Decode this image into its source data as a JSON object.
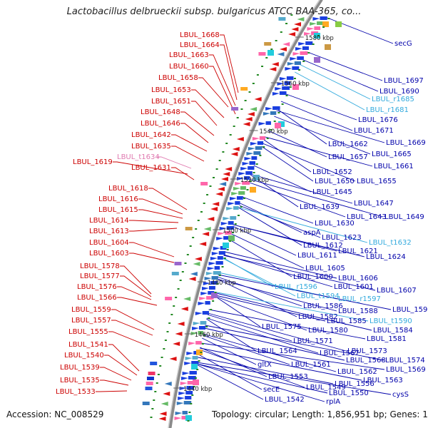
{
  "header": {
    "title": "Lactobacillus delbrueckii subsp. bulgaricus ATCC BAA-365, co..."
  },
  "footer": {
    "accession": "Accession: NC_008529",
    "topology": "Topology: circular; Length: 1,856,951 bp; Genes: 1,841"
  },
  "colors": {
    "left_label": "#cc0000",
    "left_label_light": "#e07ab0",
    "right_label": "#0000aa",
    "right_label_light": "#33aadd",
    "backbone": "#8a8a8a",
    "tick_mark": "#228822"
  },
  "scale_labels": [
    "1580 kbp",
    "1560 kbp",
    "1540 kbp",
    "1520 kbp",
    "1500 kbp",
    "1480 kbp",
    "1460 kbp",
    "1440 kbp"
  ],
  "left_labels": [
    {
      "text": "LBUL_1668",
      "light": false
    },
    {
      "text": "LBUL_1664",
      "light": false
    },
    {
      "text": "LBUL_1663",
      "light": false
    },
    {
      "text": "LBUL_1660",
      "light": false
    },
    {
      "text": "LBUL_1658",
      "light": false
    },
    {
      "text": "LBUL_1653",
      "light": false
    },
    {
      "text": "LBUL_1651",
      "light": false
    },
    {
      "text": "LBUL_1648",
      "light": false
    },
    {
      "text": "LBUL_1646",
      "light": false
    },
    {
      "text": "LBUL_1642",
      "light": false
    },
    {
      "text": "LBUL_1635",
      "light": false
    },
    {
      "text": "LBUL_t1634",
      "light": true
    },
    {
      "text": "LBUL_1619",
      "light": false
    },
    {
      "text": "LBUL_1631",
      "light": false
    },
    {
      "text": "LBUL_1618",
      "light": false
    },
    {
      "text": "LBUL_1616",
      "light": false
    },
    {
      "text": "LBUL_1615",
      "light": false
    },
    {
      "text": "LBUL_1614",
      "light": false
    },
    {
      "text": "LBUL_1613",
      "light": false
    },
    {
      "text": "LBUL_1604",
      "light": false
    },
    {
      "text": "LBUL_1603",
      "light": false
    },
    {
      "text": "LBUL_1578",
      "light": false
    },
    {
      "text": "LBUL_1577",
      "light": false
    },
    {
      "text": "LBUL_1576",
      "light": false
    },
    {
      "text": "LBUL_1566",
      "light": false
    },
    {
      "text": "LBUL_1559",
      "light": false
    },
    {
      "text": "LBUL_1557",
      "light": false
    },
    {
      "text": "LBUL_1555",
      "light": false
    },
    {
      "text": "LBUL_1541",
      "light": false
    },
    {
      "text": "LBUL_1540",
      "light": false
    },
    {
      "text": "LBUL_1539",
      "light": false
    },
    {
      "text": "LBUL_1535",
      "light": false
    },
    {
      "text": "LBUL_1533",
      "light": false
    }
  ],
  "right_labels": [
    {
      "text": "secG",
      "light": false
    },
    {
      "text": "LBUL_1697",
      "light": false
    },
    {
      "text": "LBUL_1690",
      "light": false
    },
    {
      "text": "LBUL_r1685",
      "light": true
    },
    {
      "text": "LBUL_r1681",
      "light": true
    },
    {
      "text": "LBUL_1676",
      "light": false
    },
    {
      "text": "LBUL_1671",
      "light": false
    },
    {
      "text": "LBUL_1669",
      "light": false
    },
    {
      "text": "LBUL_1662",
      "light": false
    },
    {
      "text": "LBUL_1665",
      "light": false
    },
    {
      "text": "LBUL_1657",
      "light": false
    },
    {
      "text": "LBUL_1661",
      "light": false
    },
    {
      "text": "LBUL_1652",
      "light": false
    },
    {
      "text": "LBUL_1650",
      "light": false
    },
    {
      "text": "LBUL_1655",
      "light": false
    },
    {
      "text": "LBUL_1645",
      "light": false
    },
    {
      "text": "LBUL_1647",
      "light": false
    },
    {
      "text": "LBUL_1639",
      "light": false
    },
    {
      "text": "LBUL_1643",
      "light": false
    },
    {
      "text": "LBUL_1649",
      "light": false
    },
    {
      "text": "LBUL_1630",
      "light": false
    },
    {
      "text": "aspA",
      "light": false
    },
    {
      "text": "LBUL_1623",
      "light": false
    },
    {
      "text": "LBUL_t1632",
      "light": true
    },
    {
      "text": "LBUL_1612",
      "light": false
    },
    {
      "text": "LBUL_1621",
      "light": false
    },
    {
      "text": "LBUL_1611",
      "light": false
    },
    {
      "text": "LBUL_1624",
      "light": false
    },
    {
      "text": "LBUL_1605",
      "light": false
    },
    {
      "text": "LBUL_1600",
      "light": false
    },
    {
      "text": "LBUL_1606",
      "light": false
    },
    {
      "text": "LBUL_r1596",
      "light": true
    },
    {
      "text": "LBUL_1601",
      "light": false
    },
    {
      "text": "LBUL_1607",
      "light": false
    },
    {
      "text": "LBUL_t1594",
      "light": true
    },
    {
      "text": "LBUL_r1597",
      "light": true
    },
    {
      "text": "LBUL_1586",
      "light": false
    },
    {
      "text": "LBUL_1588",
      "light": false
    },
    {
      "text": "LBUL_1598",
      "light": false
    },
    {
      "text": "LBUL_1582",
      "light": false
    },
    {
      "text": "LBUL_1585",
      "light": false
    },
    {
      "text": "LBUL_t1590",
      "light": true
    },
    {
      "text": "LBUL_1575",
      "light": false
    },
    {
      "text": "LBUL_1580",
      "light": false
    },
    {
      "text": "LBUL_1584",
      "light": false
    },
    {
      "text": "LBUL_1571",
      "light": false
    },
    {
      "text": "LBUL_1581",
      "light": false
    },
    {
      "text": "LBUL_1564",
      "light": false
    },
    {
      "text": "LBUL_1567",
      "light": false
    },
    {
      "text": "LBUL_1573",
      "light": false
    },
    {
      "text": "gltX",
      "light": false
    },
    {
      "text": "LBUL_1561",
      "light": false
    },
    {
      "text": "LBUL_1568",
      "light": false
    },
    {
      "text": "LBUL_1574",
      "light": false
    },
    {
      "text": "LBUL_1562",
      "light": false
    },
    {
      "text": "LBUL_1569",
      "light": false
    },
    {
      "text": "LBUL_1553",
      "light": false
    },
    {
      "text": "LBUL_1563",
      "light": false
    },
    {
      "text": "secE",
      "light": false
    },
    {
      "text": "LBUL_1549",
      "light": false
    },
    {
      "text": "LBUL_1556",
      "light": false
    },
    {
      "text": "LBUL_1550",
      "light": false
    },
    {
      "text": "cysS",
      "light": false
    },
    {
      "text": "LBUL_1542",
      "light": false
    },
    {
      "text": "rplA",
      "light": false
    }
  ]
}
